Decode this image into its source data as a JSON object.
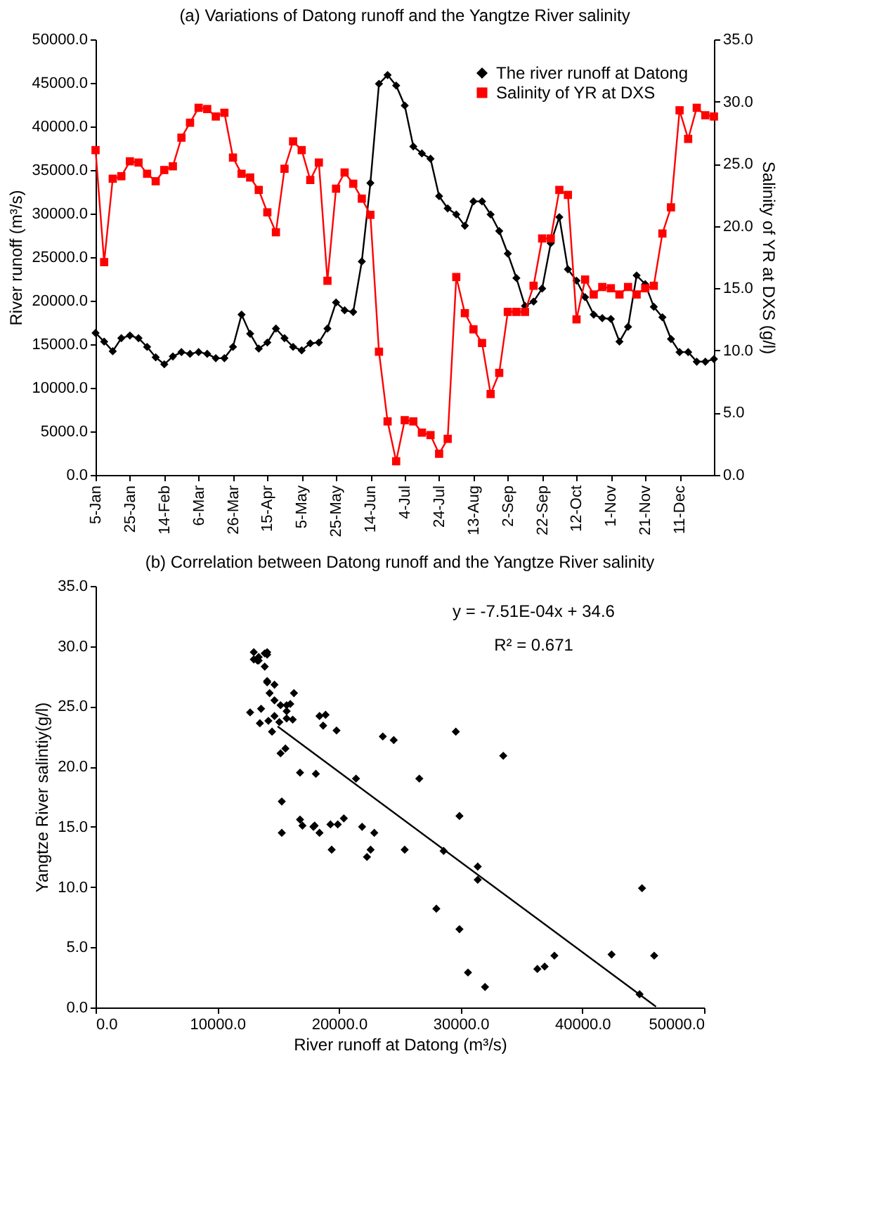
{
  "chart_data": [
    {
      "type": "line",
      "title": "(a)  Variations of Datong runoff and the Yangtze River salinity",
      "ylabel": "River runoff (m³/s)",
      "y2label": "Salinity of YR at DXS (g/l)",
      "categories": [
        "5-Jan",
        null,
        null,
        null,
        "25-Jan",
        null,
        null,
        null,
        "14-Feb",
        null,
        null,
        null,
        "6-Mar",
        null,
        null,
        null,
        "26-Mar",
        null,
        null,
        null,
        "15-Apr",
        null,
        null,
        null,
        "5-May",
        null,
        null,
        null,
        "25-May",
        null,
        null,
        null,
        "14-Jun",
        null,
        null,
        null,
        "4-Jul",
        null,
        null,
        null,
        "24-Jul",
        null,
        null,
        null,
        "13-Aug",
        null,
        null,
        null,
        "2-Sep",
        null,
        null,
        null,
        "22-Sep",
        null,
        null,
        null,
        "12-Oct",
        null,
        null,
        null,
        "1-Nov",
        null,
        null,
        null,
        "21-Nov",
        null,
        null,
        null,
        "11-Dec",
        null,
        null,
        null,
        null
      ],
      "ylim": [
        0,
        50000
      ],
      "yticks": [
        {
          "value": 0,
          "label": "0.0"
        },
        {
          "value": 5000,
          "label": "5000.0"
        },
        {
          "value": 10000,
          "label": "10000.0"
        },
        {
          "value": 15000,
          "label": "15000.0"
        },
        {
          "value": 20000,
          "label": "20000.0"
        },
        {
          "value": 25000,
          "label": "25000.0"
        },
        {
          "value": 30000,
          "label": "30000.0"
        },
        {
          "value": 35000,
          "label": "35000.0"
        },
        {
          "value": 40000,
          "label": "40000.0"
        },
        {
          "value": 45000,
          "label": "45000.0"
        },
        {
          "value": 50000,
          "label": "50000.0"
        }
      ],
      "y2lim": [
        0,
        35
      ],
      "y2ticks": [
        {
          "value": 0,
          "label": "0.0"
        },
        {
          "value": 5,
          "label": "5.0"
        },
        {
          "value": 10,
          "label": "10.0"
        },
        {
          "value": 15,
          "label": "15.0"
        },
        {
          "value": 20,
          "label": "20.0"
        },
        {
          "value": 25,
          "label": "25.0"
        },
        {
          "value": 30,
          "label": "30.0"
        },
        {
          "value": 35,
          "label": "35.0"
        }
      ],
      "legend": "top right",
      "series": [
        {
          "name": "The river runoff at Datong",
          "color": "#000000",
          "marker": "diamond",
          "values": [
            16300,
            15300,
            14200,
            15700,
            16000,
            15700,
            14700,
            13500,
            12700,
            13600,
            14100,
            13900,
            14100,
            13900,
            13400,
            13400,
            14700,
            18400,
            16200,
            14500,
            15200,
            16800,
            15700,
            14700,
            14300,
            15100,
            15200,
            16800,
            19800,
            18900,
            18700,
            24500,
            33500,
            44900,
            45900,
            44700,
            42400,
            37700,
            36900,
            36300,
            32000,
            30600,
            29900,
            28600,
            31400,
            31400,
            29900,
            28000,
            25400,
            22600,
            19400,
            19900,
            21400,
            26600,
            29600,
            23600,
            22300,
            20400,
            18400,
            18000,
            17900,
            15300,
            17000,
            22900,
            21900,
            19300,
            18100,
            15600,
            14100,
            14100,
            13000,
            13000,
            13300
          ]
        },
        {
          "name": "Salinity of YR at DXS",
          "color": "#ff0000",
          "marker": "square",
          "axis": "y2",
          "values": [
            26.1,
            17.1,
            23.8,
            24.0,
            25.2,
            25.1,
            24.2,
            23.6,
            24.5,
            24.8,
            27.1,
            28.3,
            29.5,
            29.4,
            28.8,
            29.1,
            25.5,
            24.2,
            23.9,
            22.9,
            21.1,
            19.5,
            24.6,
            26.8,
            26.1,
            23.7,
            25.1,
            15.6,
            23.0,
            24.3,
            23.4,
            22.2,
            20.9,
            9.9,
            4.3,
            1.1,
            4.4,
            4.3,
            3.4,
            3.2,
            1.7,
            2.9,
            15.9,
            13.0,
            11.7,
            10.6,
            6.5,
            8.2,
            13.1,
            13.1,
            13.1,
            15.2,
            19.0,
            19.0,
            22.9,
            22.5,
            12.5,
            15.7,
            14.5,
            15.1,
            15.0,
            14.5,
            15.1,
            14.5,
            15.0,
            15.2,
            19.4,
            21.5,
            29.3,
            27.0,
            29.5,
            28.9,
            28.8
          ]
        }
      ]
    },
    {
      "type": "scatter",
      "title": "(b) Correlation between Datong runoff and the Yangtze River salinity",
      "xlabel": "River runoff at Datong (m³/s)",
      "ylabel": "Yangtze River salintiy(g/l)",
      "xlim": [
        0,
        50000
      ],
      "xticks": [
        {
          "value": 0,
          "label": "0.0"
        },
        {
          "value": 10000,
          "label": "10000.0"
        },
        {
          "value": 20000,
          "label": "20000.0"
        },
        {
          "value": 30000,
          "label": "30000.0"
        },
        {
          "value": 40000,
          "label": "40000.0"
        },
        {
          "value": 50000,
          "label": "50000.0"
        }
      ],
      "ylim": [
        0,
        35
      ],
      "yticks": [
        {
          "value": 0,
          "label": "0.0"
        },
        {
          "value": 5,
          "label": "5.0"
        },
        {
          "value": 10,
          "label": "10.0"
        },
        {
          "value": 15,
          "label": "15.0"
        },
        {
          "value": 20,
          "label": "20.0"
        },
        {
          "value": 25,
          "label": "25.0"
        },
        {
          "value": 30,
          "label": "30.0"
        },
        {
          "value": 35,
          "label": "35.0"
        }
      ],
      "annotations": [
        "y = -7.51E-04x + 34.6",
        "R² = 0.671"
      ],
      "series": [
        {
          "color": "#000000",
          "marker": "diamond",
          "x": [
            16300,
            15300,
            14200,
            15700,
            16000,
            15700,
            14700,
            13500,
            12700,
            13600,
            14100,
            13900,
            14100,
            13900,
            13400,
            13400,
            14700,
            18400,
            16200,
            14500,
            15200,
            16800,
            15700,
            14700,
            14300,
            15100,
            15200,
            16800,
            19800,
            18900,
            18700,
            24500,
            33500,
            44900,
            45900,
            44700,
            42400,
            37700,
            36900,
            36300,
            32000,
            30600,
            29900,
            28600,
            31400,
            31400,
            29900,
            28000,
            25400,
            22600,
            19400,
            19900,
            21400,
            26600,
            29600,
            23600,
            22300,
            20400,
            18400,
            18000,
            17900,
            15300,
            17000,
            22900,
            21900,
            19300,
            18100,
            15600,
            14100,
            14100,
            13000,
            13000,
            13300
          ],
          "values": [
            26.1,
            17.1,
            23.8,
            24.0,
            25.2,
            25.1,
            24.2,
            23.6,
            24.5,
            24.8,
            27.1,
            28.3,
            29.5,
            29.4,
            28.8,
            29.1,
            25.5,
            24.2,
            23.9,
            22.9,
            21.1,
            19.5,
            24.6,
            26.8,
            26.1,
            23.7,
            25.1,
            15.6,
            23.0,
            24.3,
            23.4,
            22.2,
            20.9,
            9.9,
            4.3,
            1.1,
            4.4,
            4.3,
            3.4,
            3.2,
            1.7,
            2.9,
            15.9,
            13.0,
            11.7,
            10.6,
            6.5,
            8.2,
            13.1,
            13.1,
            13.1,
            15.2,
            19.0,
            19.0,
            22.9,
            22.5,
            12.5,
            15.7,
            14.5,
            15.1,
            15.0,
            14.5,
            15.1,
            14.5,
            15.0,
            15.2,
            19.4,
            21.5,
            29.3,
            27.0,
            29.5,
            28.9,
            28.8
          ]
        },
        {
          "type": "line",
          "color": "#000000",
          "x": [
            15000,
            46000
          ],
          "values": [
            23.3,
            0.1
          ]
        }
      ]
    }
  ]
}
